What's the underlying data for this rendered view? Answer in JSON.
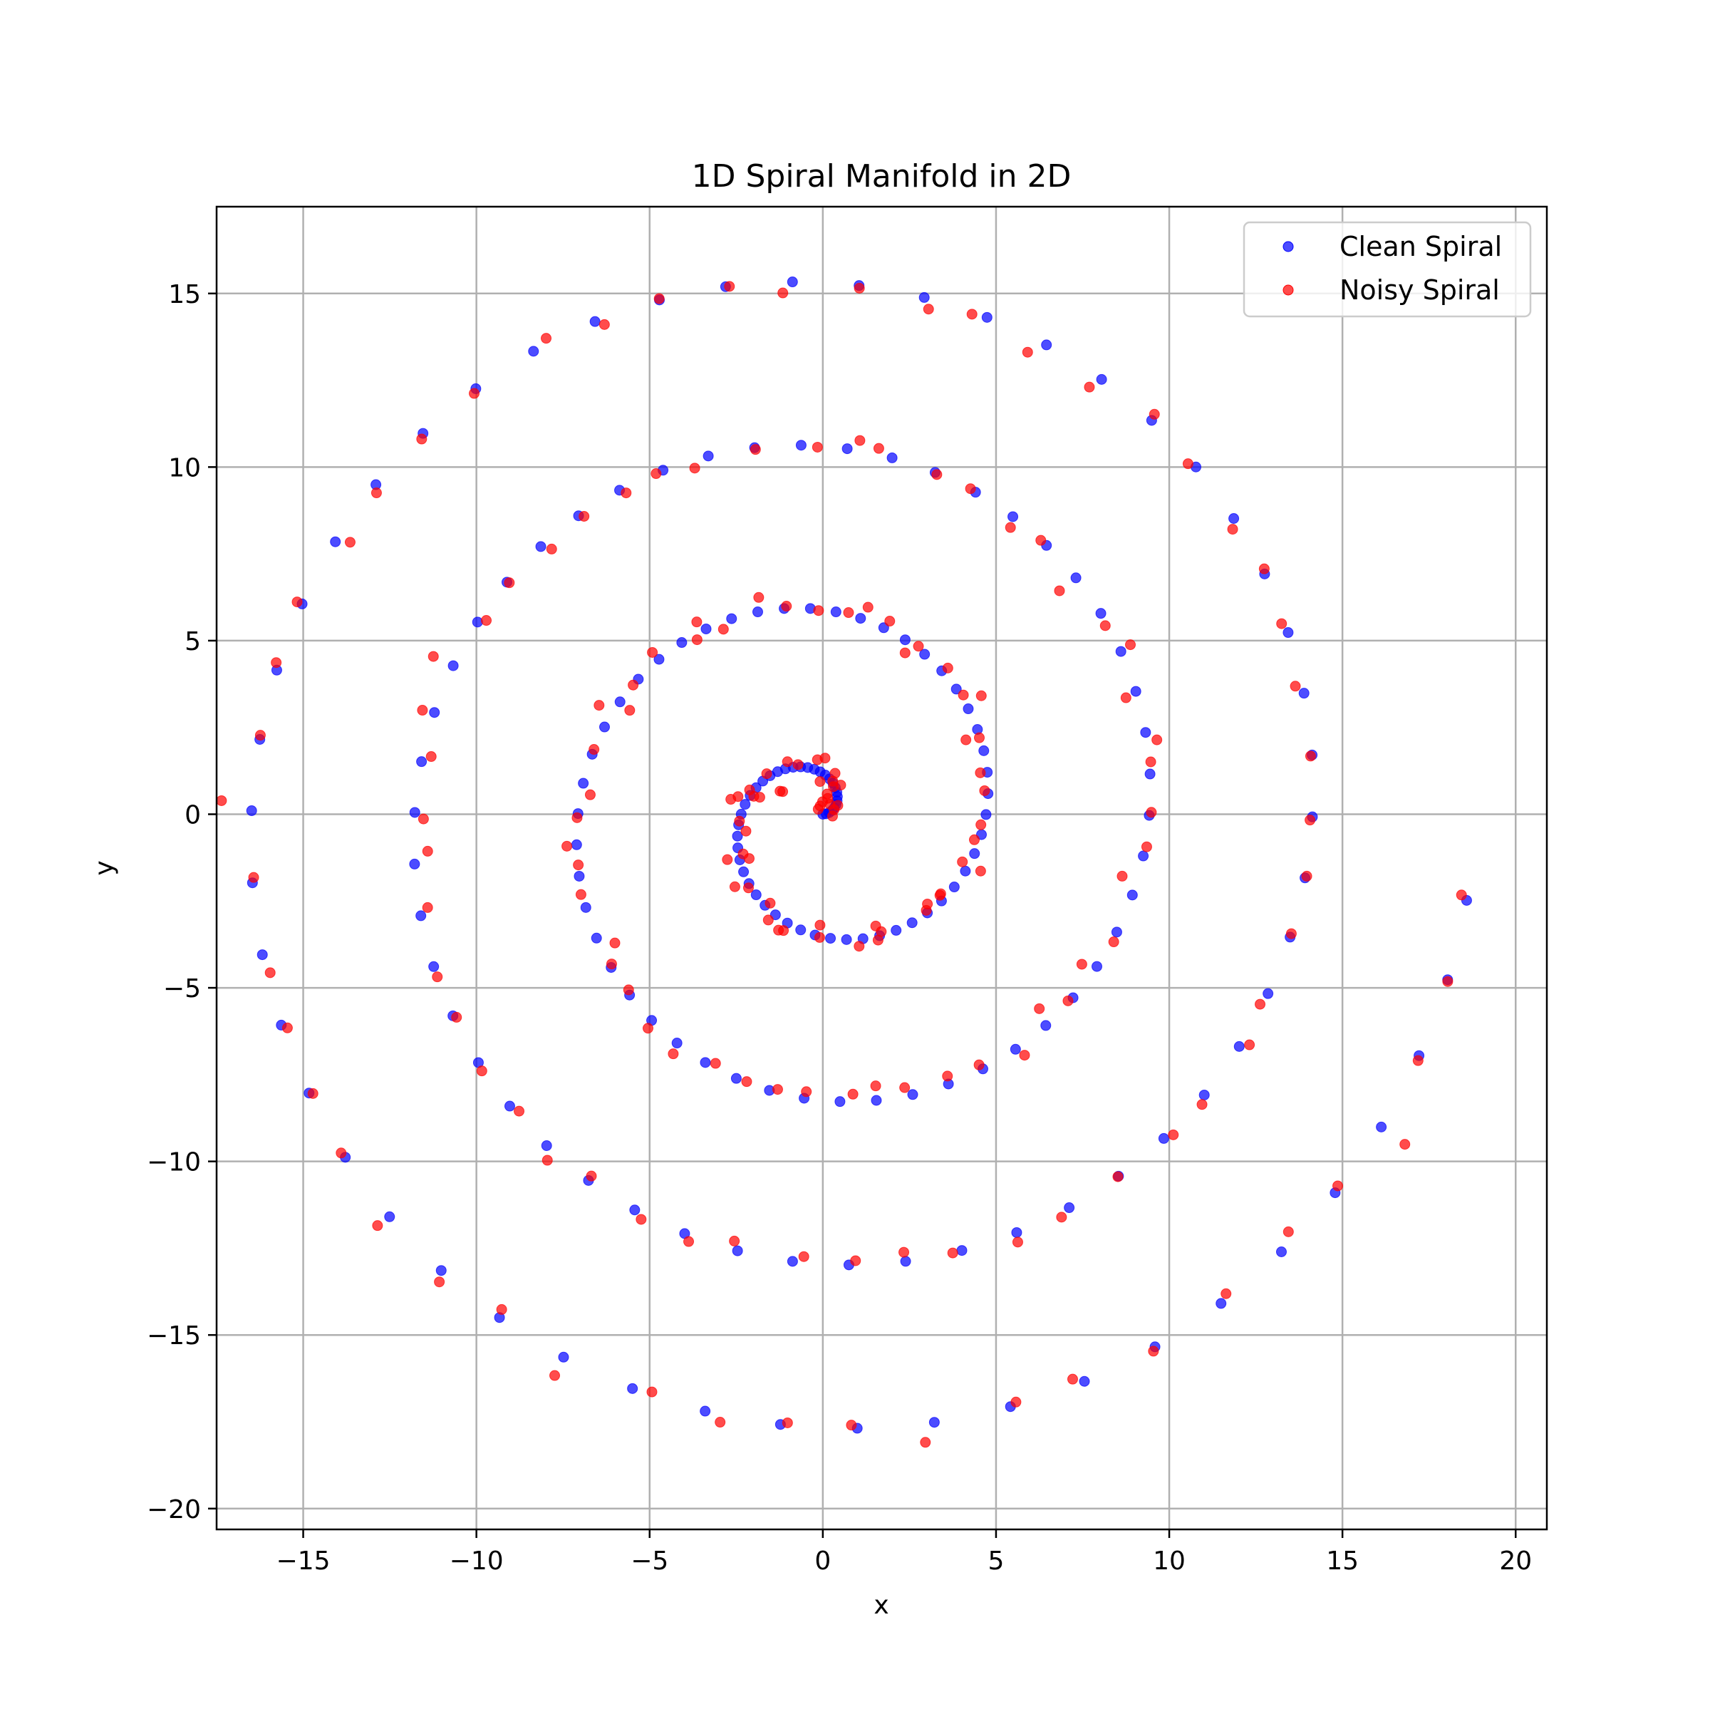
{
  "chart_data": {
    "type": "scatter",
    "title": "1D Spiral Manifold in 2D",
    "xlabel": "x",
    "ylabel": "y",
    "xlim": [
      -17.5,
      20.9
    ],
    "ylim": [
      -20.6,
      17.5
    ],
    "xticks": [
      -15,
      -10,
      -5,
      0,
      5,
      10,
      15,
      20
    ],
    "yticks": [
      -20,
      -15,
      -10,
      -5,
      0,
      5,
      10,
      15
    ],
    "xtick_labels": [
      "−15",
      "−10",
      "−5",
      "0",
      "5",
      "10",
      "15",
      "20"
    ],
    "ytick_labels": [
      "−20",
      "−15",
      "−10",
      "−5",
      "0",
      "5",
      "10",
      "15"
    ],
    "grid": true,
    "legend_position": "top-right",
    "series": [
      {
        "name": "Clean Spiral",
        "color": "#0000ff",
        "spiral": {
          "a": 0,
          "b": 0.75,
          "t_start": 0,
          "t_end": 25.0,
          "n_points": 200
        }
      },
      {
        "name": "Noisy Spiral",
        "color": "#ff0000",
        "spiral": {
          "a": 0,
          "b": 0.75,
          "t_start": 0,
          "t_end": 25.0,
          "n_points": 200,
          "noise_sd": 0.25
        }
      }
    ]
  }
}
